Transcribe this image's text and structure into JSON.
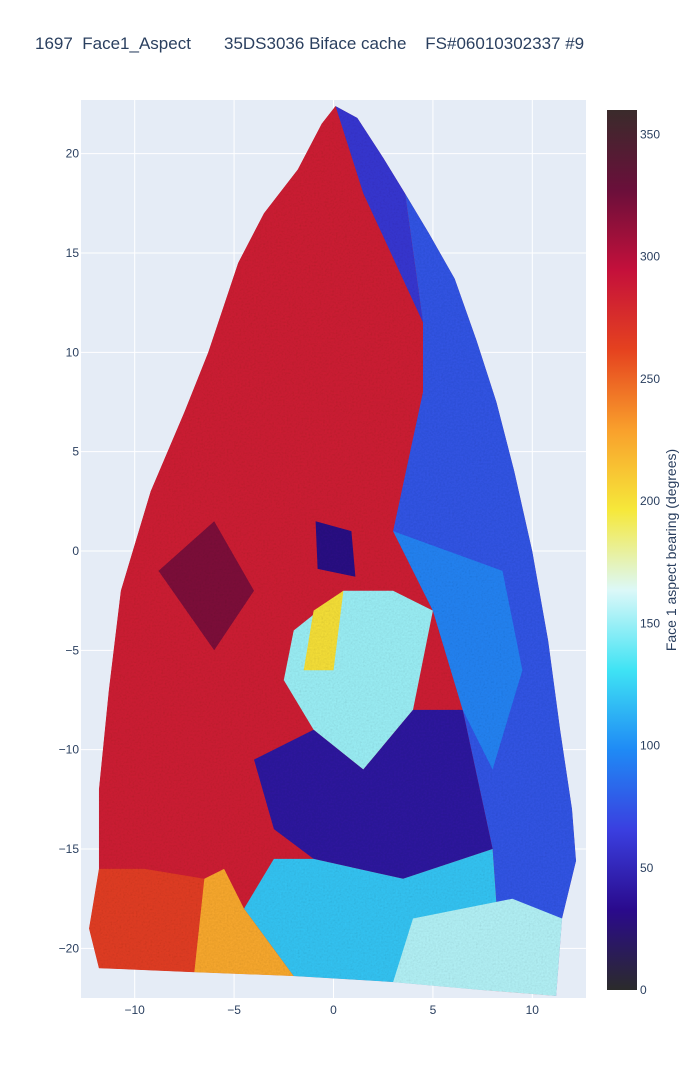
{
  "chart_data": {
    "type": "heatmap",
    "title": "1697  Face1_Aspect       35DS3036 Biface cache    FS#06010302337 #9",
    "xlabel": "",
    "ylabel": "",
    "xlim": [
      -12.7,
      12.7
    ],
    "ylim": [
      -22.5,
      22.7
    ],
    "x_ticks": [
      -10,
      -5,
      0,
      5,
      10
    ],
    "y_ticks": [
      -20,
      -15,
      -10,
      -5,
      0,
      5,
      10,
      15,
      20
    ],
    "x_tick_labels": [
      "−10",
      "−5",
      "0",
      "5",
      "10"
    ],
    "y_tick_labels": [
      "−20",
      "−15",
      "−10",
      "−5",
      "0",
      "5",
      "10",
      "15",
      "20"
    ],
    "grid": true,
    "colorscale": [
      "#2b2b2b",
      "#2a0a8c",
      "#3a3fe0",
      "#1f8af5",
      "#3fe3f4",
      "#dcf8f8",
      "#f6e83a",
      "#f9a02c",
      "#e5421f",
      "#c4103b",
      "#6a0f3a",
      "#3a2b2b"
    ],
    "colorbar": {
      "title": "Face 1 aspect bearing (degrees)",
      "range": [
        0,
        360
      ],
      "ticks": [
        0,
        50,
        100,
        150,
        200,
        250,
        300,
        350
      ],
      "tick_labels": [
        "0",
        "50",
        "100",
        "150",
        "200",
        "250",
        "300",
        "350"
      ]
    },
    "outline": [
      [
        0.1,
        22.4
      ],
      [
        1.2,
        21.8
      ],
      [
        2.5,
        19.8
      ],
      [
        3.6,
        18.0
      ],
      [
        4.8,
        16.0
      ],
      [
        6.1,
        13.7
      ],
      [
        7.2,
        10.6
      ],
      [
        8.2,
        7.5
      ],
      [
        9.1,
        4.0
      ],
      [
        10.0,
        0.0
      ],
      [
        10.8,
        -4.5
      ],
      [
        11.4,
        -9.0
      ],
      [
        12.0,
        -13.0
      ],
      [
        12.2,
        -15.6
      ],
      [
        11.5,
        -18.5
      ],
      [
        11.2,
        -22.4
      ],
      [
        7.5,
        -22.1
      ],
      [
        3.0,
        -21.7
      ],
      [
        -2.0,
        -21.4
      ],
      [
        -7.0,
        -21.2
      ],
      [
        -11.8,
        -21.0
      ],
      [
        -12.3,
        -19.0
      ],
      [
        -11.8,
        -16.0
      ],
      [
        -11.8,
        -12.0
      ],
      [
        -11.3,
        -7.0
      ],
      [
        -10.7,
        -2.0
      ],
      [
        -9.2,
        3.0
      ],
      [
        -7.5,
        7.0
      ],
      [
        -6.3,
        10.0
      ],
      [
        -4.8,
        14.5
      ],
      [
        -3.5,
        17.0
      ],
      [
        -1.8,
        19.2
      ],
      [
        -0.6,
        21.5
      ]
    ],
    "aspect_regions": [
      {
        "aspect": 285,
        "polygon": [
          [
            0.1,
            22.4
          ],
          [
            -0.6,
            21.5
          ],
          [
            -1.8,
            19.2
          ],
          [
            -3.5,
            17.0
          ],
          [
            -4.8,
            14.5
          ],
          [
            -6.3,
            10.0
          ],
          [
            -7.5,
            7.0
          ],
          [
            -9.2,
            3.0
          ],
          [
            -10.7,
            -2.0
          ],
          [
            -11.3,
            -7.0
          ],
          [
            -11.8,
            -12.0
          ],
          [
            -11.8,
            -16.0
          ],
          [
            -12.3,
            -19.0
          ],
          [
            -11.8,
            -21.0
          ],
          [
            -7.0,
            -21.2
          ],
          [
            -5.5,
            -16.0
          ],
          [
            -4.0,
            -10.5
          ],
          [
            -2.0,
            -4.0
          ],
          [
            1.0,
            0.0
          ],
          [
            2.5,
            5.0
          ],
          [
            4.5,
            11.5
          ],
          [
            1.5,
            18.0
          ]
        ]
      },
      {
        "aspect": 265,
        "polygon": [
          [
            -12.3,
            -19.0
          ],
          [
            -11.8,
            -21.0
          ],
          [
            -7.0,
            -21.2
          ],
          [
            -6.5,
            -16.5
          ],
          [
            -9.5,
            -16.0
          ],
          [
            -11.8,
            -16.0
          ]
        ]
      },
      {
        "aspect": 320,
        "polygon": [
          [
            -8.8,
            -1.0
          ],
          [
            -6.0,
            -5.0
          ],
          [
            -4.0,
            -2.0
          ],
          [
            -6.0,
            1.5
          ]
        ]
      },
      {
        "aspect": 60,
        "polygon": [
          [
            0.1,
            22.4
          ],
          [
            1.2,
            21.8
          ],
          [
            2.5,
            19.8
          ],
          [
            3.6,
            18.0
          ],
          [
            4.5,
            11.5
          ],
          [
            1.5,
            18.0
          ]
        ]
      },
      {
        "aspect": 75,
        "polygon": [
          [
            3.6,
            18.0
          ],
          [
            4.8,
            16.0
          ],
          [
            6.1,
            13.7
          ],
          [
            7.2,
            10.6
          ],
          [
            8.2,
            7.5
          ],
          [
            9.1,
            4.0
          ],
          [
            10.0,
            0.0
          ],
          [
            10.8,
            -4.5
          ],
          [
            11.4,
            -9.0
          ],
          [
            12.0,
            -13.0
          ],
          [
            12.2,
            -15.6
          ],
          [
            11.5,
            -18.5
          ],
          [
            11.2,
            -22.4
          ],
          [
            8.5,
            -22.1
          ],
          [
            8.0,
            -15.0
          ],
          [
            6.5,
            -8.0
          ],
          [
            5.0,
            -3.0
          ],
          [
            3.0,
            1.0
          ],
          [
            4.5,
            8.0
          ],
          [
            4.5,
            11.5
          ]
        ]
      },
      {
        "aspect": 150,
        "polygon": [
          [
            -2.0,
            -4.0
          ],
          [
            0.5,
            -2.0
          ],
          [
            3.0,
            -2.0
          ],
          [
            5.0,
            -3.0
          ],
          [
            4.0,
            -8.0
          ],
          [
            1.5,
            -11.0
          ],
          [
            -1.0,
            -9.0
          ],
          [
            -2.5,
            -6.5
          ]
        ]
      },
      {
        "aspect": 40,
        "polygon": [
          [
            -4.0,
            -10.5
          ],
          [
            -1.0,
            -9.0
          ],
          [
            1.5,
            -11.0
          ],
          [
            4.0,
            -8.0
          ],
          [
            6.5,
            -8.0
          ],
          [
            8.0,
            -15.0
          ],
          [
            3.5,
            -16.5
          ],
          [
            -1.0,
            -15.5
          ],
          [
            -3.0,
            -14.0
          ]
        ]
      },
      {
        "aspect": 120,
        "polygon": [
          [
            8.5,
            -22.1
          ],
          [
            7.5,
            -22.1
          ],
          [
            3.0,
            -21.7
          ],
          [
            -2.0,
            -21.4
          ],
          [
            -4.5,
            -18.0
          ],
          [
            -3.0,
            -15.5
          ],
          [
            -1.0,
            -15.5
          ],
          [
            3.5,
            -16.5
          ],
          [
            8.0,
            -15.0
          ]
        ]
      },
      {
        "aspect": 155,
        "polygon": [
          [
            7.5,
            -22.1
          ],
          [
            3.0,
            -21.7
          ],
          [
            4.0,
            -18.5
          ],
          [
            9.0,
            -17.5
          ],
          [
            11.5,
            -18.5
          ],
          [
            11.2,
            -22.4
          ]
        ]
      },
      {
        "aspect": 225,
        "polygon": [
          [
            -6.5,
            -16.5
          ],
          [
            -5.5,
            -16.0
          ],
          [
            -4.5,
            -18.0
          ],
          [
            -2.0,
            -21.4
          ],
          [
            -7.0,
            -21.2
          ]
        ]
      },
      {
        "aspect": 95,
        "polygon": [
          [
            3.0,
            1.0
          ],
          [
            5.0,
            -3.0
          ],
          [
            6.5,
            -8.0
          ],
          [
            8.0,
            -11.0
          ],
          [
            9.5,
            -6.0
          ],
          [
            8.5,
            -1.0
          ]
        ]
      },
      {
        "aspect": 30,
        "polygon": [
          [
            -0.9,
            1.5
          ],
          [
            0.9,
            1.0
          ],
          [
            1.1,
            -1.3
          ],
          [
            -0.8,
            -0.9
          ]
        ]
      },
      {
        "aspect": 200,
        "polygon": [
          [
            -1.0,
            -3.0
          ],
          [
            0.5,
            -2.0
          ],
          [
            0.0,
            -6.0
          ],
          [
            -1.5,
            -6.0
          ]
        ]
      }
    ]
  }
}
